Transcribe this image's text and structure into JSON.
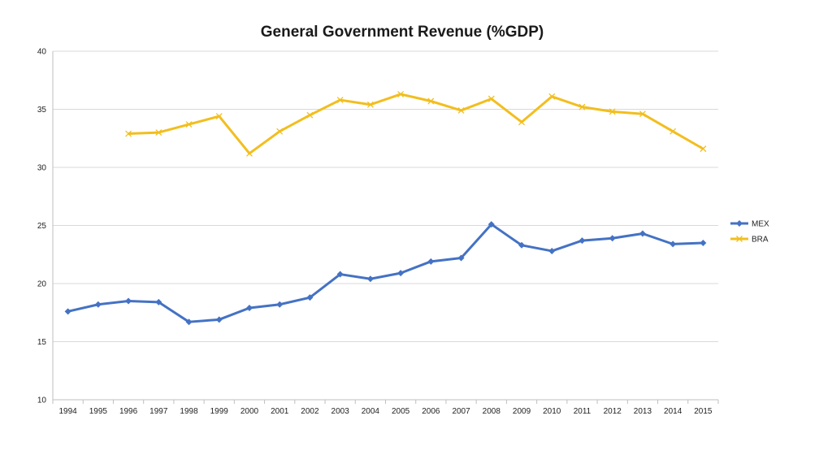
{
  "chart_data": {
    "type": "line",
    "title": "General Government Revenue (%GDP)",
    "xlabel": "",
    "ylabel": "",
    "categories": [
      "1994",
      "1995",
      "1996",
      "1997",
      "1998",
      "1999",
      "2000",
      "2001",
      "2002",
      "2003",
      "2004",
      "2005",
      "2006",
      "2007",
      "2008",
      "2009",
      "2010",
      "2011",
      "2012",
      "2013",
      "2014",
      "2015"
    ],
    "yticks": [
      "10",
      "15",
      "20",
      "25",
      "30",
      "35",
      "40"
    ],
    "ylim": [
      10,
      40
    ],
    "grid": true,
    "legend_position": "right",
    "series": [
      {
        "name": "MEX",
        "color": "#4472C4",
        "marker": "diamond",
        "values": [
          17.6,
          18.2,
          18.5,
          18.4,
          16.7,
          16.9,
          17.9,
          18.2,
          18.8,
          20.8,
          20.4,
          20.9,
          21.9,
          22.2,
          25.1,
          23.3,
          22.8,
          23.7,
          23.9,
          24.3,
          23.4,
          23.5
        ]
      },
      {
        "name": "BRA",
        "color": "#F2BE1E",
        "marker": "x",
        "values": [
          null,
          null,
          32.9,
          33.0,
          33.7,
          34.4,
          31.2,
          33.1,
          34.5,
          35.8,
          35.4,
          36.3,
          35.7,
          34.9,
          35.9,
          33.9,
          36.1,
          35.2,
          34.8,
          34.6,
          33.1,
          31.6
        ]
      }
    ]
  }
}
